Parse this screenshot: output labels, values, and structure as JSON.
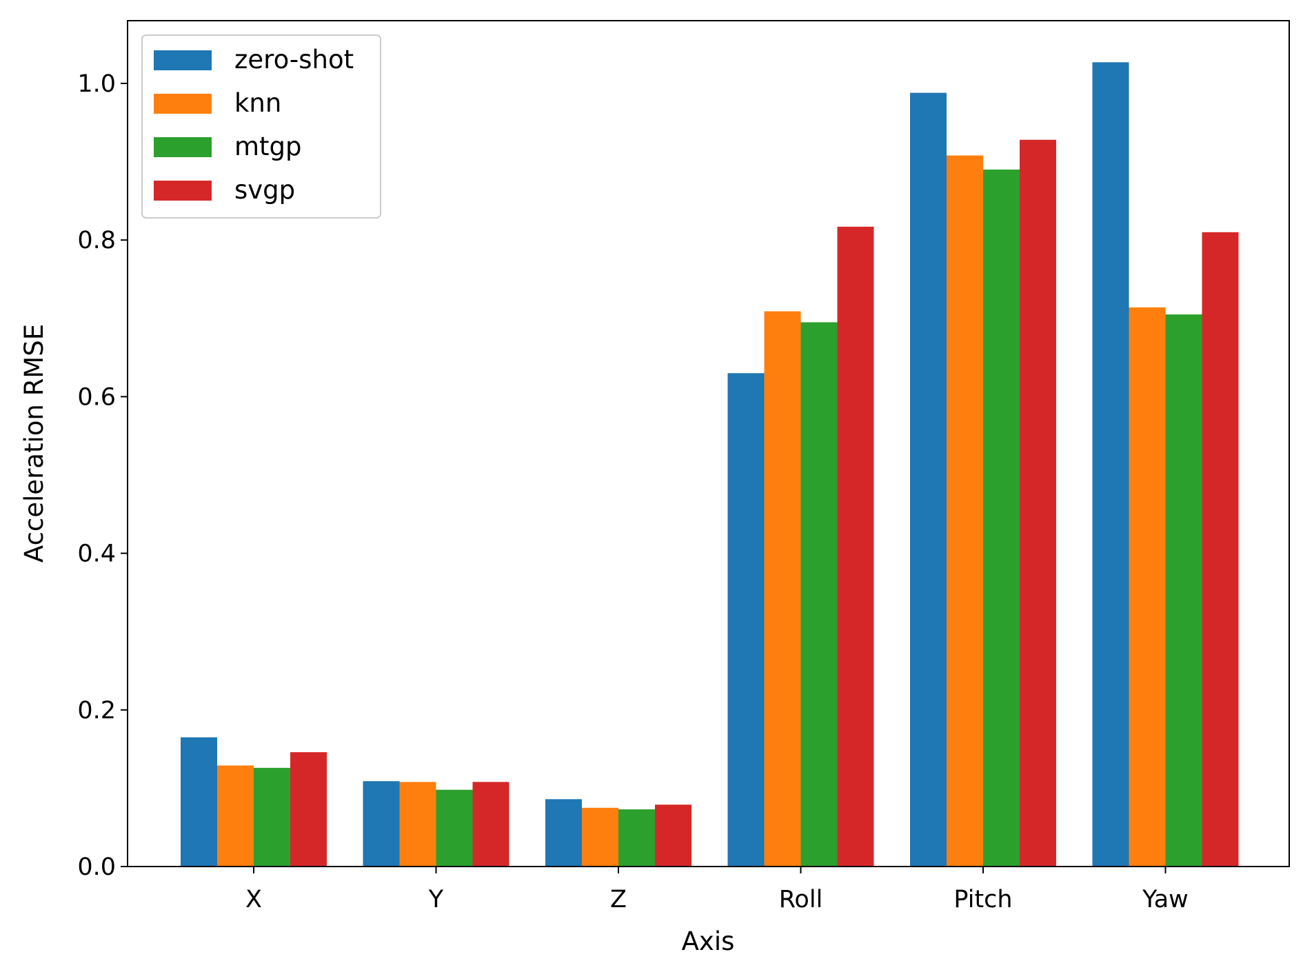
{
  "chart_data": {
    "type": "bar",
    "title": "",
    "xlabel": "Axis",
    "ylabel": "Acceleration RMSE",
    "categories": [
      "X",
      "Y",
      "Z",
      "Roll",
      "Pitch",
      "Yaw"
    ],
    "ylim": [
      0,
      1.08
    ],
    "yticks": [
      "0.0",
      "0.2",
      "0.4",
      "0.6",
      "0.8",
      "1.0"
    ],
    "grid": false,
    "legend_position": "top-left",
    "series": [
      {
        "name": "zero-shot",
        "color": "#1f77b4",
        "values": [
          0.165,
          0.109,
          0.086,
          0.63,
          0.988,
          1.027
        ]
      },
      {
        "name": "knn",
        "color": "#ff7f0e",
        "values": [
          0.129,
          0.108,
          0.075,
          0.709,
          0.908,
          0.714
        ]
      },
      {
        "name": "mtgp",
        "color": "#2ca02c",
        "values": [
          0.126,
          0.098,
          0.073,
          0.695,
          0.89,
          0.705
        ]
      },
      {
        "name": "svgp",
        "color": "#d62728",
        "values": [
          0.146,
          0.108,
          0.079,
          0.817,
          0.928,
          0.81
        ]
      }
    ]
  }
}
